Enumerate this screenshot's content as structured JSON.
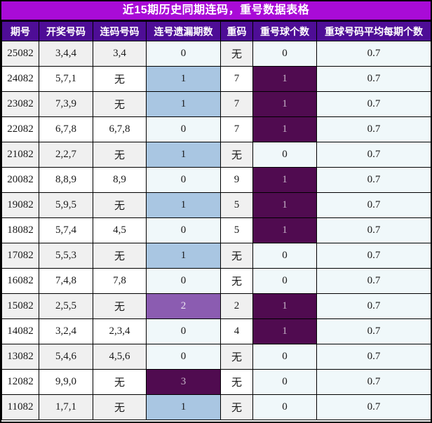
{
  "title": "近15期历史同期连码，重号数据表格",
  "chart_data": {
    "type": "table",
    "title": "近15期历史同期连码，重号数据表格",
    "columns": [
      "期号",
      "开奖号码",
      "连码号码",
      "连号遗漏期数",
      "重码",
      "重号球个数",
      "重球号码平均每期个数"
    ],
    "rows": [
      {
        "period": "25082",
        "numbers": "3,4,4",
        "consecutive": "3,4",
        "gap": "0",
        "repeat": "无",
        "repeat_count": "0",
        "avg": "0.7"
      },
      {
        "period": "24082",
        "numbers": "5,7,1",
        "consecutive": "无",
        "gap": "1",
        "repeat": "7",
        "repeat_count": "1",
        "avg": "0.7"
      },
      {
        "period": "23082",
        "numbers": "7,3,9",
        "consecutive": "无",
        "gap": "1",
        "repeat": "7",
        "repeat_count": "1",
        "avg": "0.7"
      },
      {
        "period": "22082",
        "numbers": "6,7,8",
        "consecutive": "6,7,8",
        "gap": "0",
        "repeat": "7",
        "repeat_count": "1",
        "avg": "0.7"
      },
      {
        "period": "21082",
        "numbers": "2,2,7",
        "consecutive": "无",
        "gap": "1",
        "repeat": "无",
        "repeat_count": "0",
        "avg": "0.7"
      },
      {
        "period": "20082",
        "numbers": "8,8,9",
        "consecutive": "8,9",
        "gap": "0",
        "repeat": "9",
        "repeat_count": "1",
        "avg": "0.7"
      },
      {
        "period": "19082",
        "numbers": "5,9,5",
        "consecutive": "无",
        "gap": "1",
        "repeat": "5",
        "repeat_count": "1",
        "avg": "0.7"
      },
      {
        "period": "18082",
        "numbers": "5,7,4",
        "consecutive": "4,5",
        "gap": "0",
        "repeat": "5",
        "repeat_count": "1",
        "avg": "0.7"
      },
      {
        "period": "17082",
        "numbers": "5,5,3",
        "consecutive": "无",
        "gap": "1",
        "repeat": "无",
        "repeat_count": "0",
        "avg": "0.7"
      },
      {
        "period": "16082",
        "numbers": "7,4,8",
        "consecutive": "7,8",
        "gap": "0",
        "repeat": "无",
        "repeat_count": "0",
        "avg": "0.7"
      },
      {
        "period": "15082",
        "numbers": "2,5,5",
        "consecutive": "无",
        "gap": "2",
        "repeat": "2",
        "repeat_count": "1",
        "avg": "0.7"
      },
      {
        "period": "14082",
        "numbers": "3,2,4",
        "consecutive": "2,3,4",
        "gap": "0",
        "repeat": "4",
        "repeat_count": "1",
        "avg": "0.7"
      },
      {
        "period": "13082",
        "numbers": "5,4,6",
        "consecutive": "4,5,6",
        "gap": "0",
        "repeat": "无",
        "repeat_count": "0",
        "avg": "0.7"
      },
      {
        "period": "12082",
        "numbers": "9,9,0",
        "consecutive": "无",
        "gap": "3",
        "repeat": "无",
        "repeat_count": "0",
        "avg": "0.7"
      },
      {
        "period": "11082",
        "numbers": "1,7,1",
        "consecutive": "无",
        "gap": "1",
        "repeat": "无",
        "repeat_count": "0",
        "avg": "0.7"
      }
    ]
  },
  "colors": {
    "banner_bg": "#A90BD7",
    "header_bg": "#4E0D96",
    "stripe_odd": "#F0F0F0",
    "stripe_even": "#FFFFFF",
    "cell_azure": "#F0F8FA",
    "cell_blue": "#A9C6E2",
    "cell_purple_mid": "#8B5CB1",
    "cell_purple_dark": "#500B50",
    "text_dark": "#1A1A1A",
    "text_light_on_dark": "#C4B2C6",
    "text_light_on_mid": "#EAE3F0"
  }
}
